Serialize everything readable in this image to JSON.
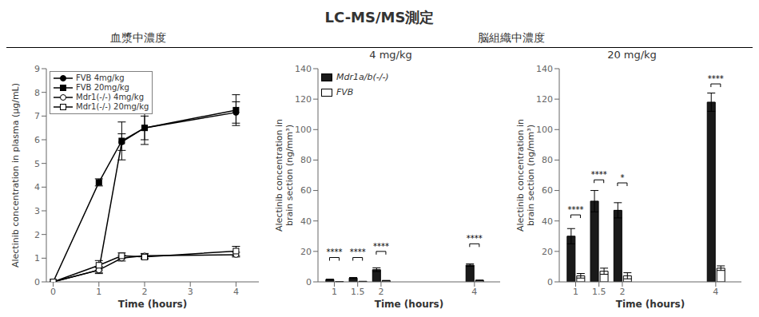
{
  "title": "LC-MS/MS測定",
  "chart_data": [
    {
      "type": "line",
      "title": "血漿中濃度",
      "xlabel": "Time (hours)",
      "ylabel": "Alectinib concentration in plasma (μg/mL)",
      "x": [
        0,
        1,
        1.5,
        2,
        4
      ],
      "xlim": [
        -0.15,
        4.5
      ],
      "xticks": [
        0,
        1,
        2,
        3,
        4
      ],
      "ylim": [
        0,
        9
      ],
      "yticks": [
        0,
        1,
        2,
        3,
        4,
        5,
        6,
        7,
        8,
        9
      ],
      "grid": false,
      "legend": "upper left",
      "series": [
        {
          "name": "FVB 4mg/kg",
          "color": "#000000",
          "marker": "circle",
          "values": [
            0,
            0.5,
            5.9,
            6.5,
            7.15
          ],
          "errors": [
            0,
            0.1,
            0.35,
            0.5,
            0.45
          ]
        },
        {
          "name": "FVB 20mg/kg",
          "color": "#000000",
          "marker": "square",
          "values": [
            0,
            4.2,
            5.95,
            6.5,
            7.25
          ],
          "errors": [
            0,
            0.15,
            0.8,
            0.7,
            0.65
          ]
        },
        {
          "name": "Mdr1(-/-) 4mg/kg",
          "color": "#000000",
          "marker": "open_circle",
          "values": [
            0,
            0.5,
            1.0,
            1.1,
            1.15
          ],
          "errors": [
            0,
            0.15,
            0.12,
            0.1,
            0.1
          ]
        },
        {
          "name": "Mdr1(-/-) 20mg/kg",
          "color": "#000000",
          "marker": "open_square",
          "values": [
            0,
            0.7,
            1.1,
            1.05,
            1.3
          ],
          "errors": [
            0,
            0.2,
            0.12,
            0.1,
            0.2
          ]
        }
      ]
    },
    {
      "type": "bar",
      "title": "4 mg/kg",
      "subtitle": "脳組織中濃度",
      "xlabel": "Time (hours)",
      "ylabel": "Alectinib concentration in\nbrain section (ng/mm³)",
      "x": [
        1,
        1.5,
        2,
        4
      ],
      "xlim": [
        0.65,
        4.55
      ],
      "xticks": [
        1,
        1.5,
        2,
        4
      ],
      "ylim": [
        0,
        140
      ],
      "yticks": [
        0,
        20,
        40,
        60,
        80,
        100,
        120,
        140
      ],
      "grid": false,
      "legend": "upper left",
      "series": [
        {
          "name": "Mdr1a/b(-/-)",
          "color": "#1a1a1a",
          "values": [
            1.5,
            2.5,
            8.0,
            11.0
          ],
          "errors": [
            0.3,
            0.4,
            1.2,
            0.8
          ]
        },
        {
          "name": "FVB",
          "color": "#ffffff",
          "values": [
            0.2,
            0.3,
            0.8,
            1.0
          ],
          "errors": [
            0.05,
            0.05,
            0.15,
            0.1
          ]
        }
      ],
      "annotations": [
        {
          "x": 1,
          "y": 16,
          "text": "****"
        },
        {
          "x": 1.5,
          "y": 16,
          "text": "****"
        },
        {
          "x": 2,
          "y": 20,
          "text": "****"
        },
        {
          "x": 4,
          "y": 25,
          "text": "****"
        }
      ]
    },
    {
      "type": "bar",
      "title": "20 mg/kg",
      "xlabel": "Time (hours)",
      "ylabel": "Alectinib concentration in\nbrain section (ng/mm³)",
      "x": [
        1,
        1.5,
        2,
        4
      ],
      "xlim": [
        0.65,
        4.55
      ],
      "xticks": [
        1,
        1.5,
        2,
        4
      ],
      "ylim": [
        0,
        140
      ],
      "yticks": [
        0,
        20,
        40,
        60,
        80,
        100,
        120,
        140
      ],
      "grid": false,
      "series": [
        {
          "color": "#1a1a1a",
          "values": [
            30,
            53,
            47,
            118
          ],
          "errors": [
            5,
            7,
            5,
            6
          ]
        },
        {
          "color": "#ffffff",
          "values": [
            4,
            7,
            4,
            9
          ],
          "errors": [
            1.5,
            2,
            2,
            1.5
          ]
        }
      ],
      "annotations": [
        {
          "x": 1,
          "y": 44,
          "text": "****"
        },
        {
          "x": 1.5,
          "y": 67,
          "text": "****"
        },
        {
          "x": 2,
          "y": 65,
          "text": "*"
        },
        {
          "x": 4,
          "y": 130,
          "text": "****"
        }
      ]
    }
  ]
}
